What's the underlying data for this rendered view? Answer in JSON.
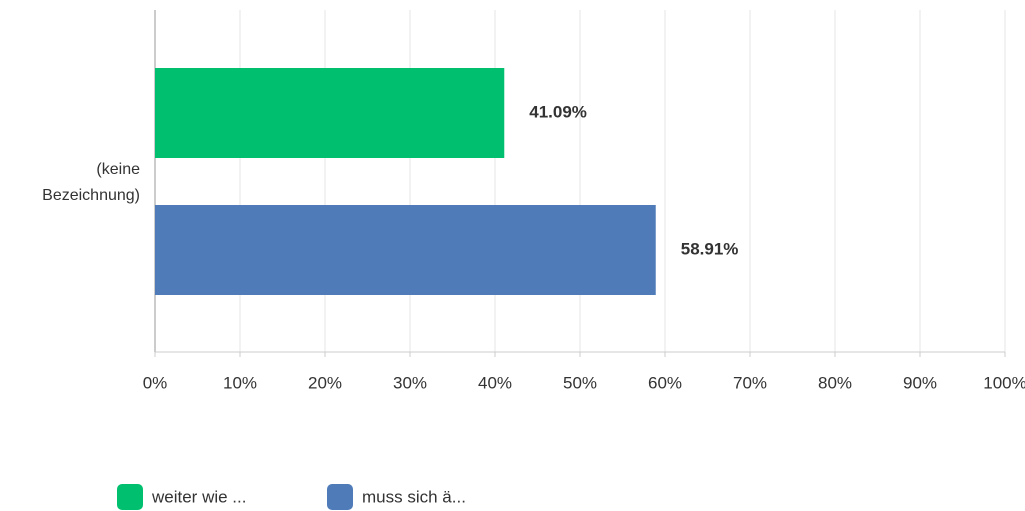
{
  "chart_data": {
    "type": "bar",
    "orientation": "horizontal",
    "categories": [
      "(keine Bezeichnung)"
    ],
    "series": [
      {
        "name": "weiter wie ...",
        "color": "#00bf6f",
        "values": [
          41.09
        ],
        "value_labels": [
          "41.09%"
        ]
      },
      {
        "name": "muss sich ä...",
        "color": "#4f7cb8",
        "values": [
          58.91
        ],
        "value_labels": [
          "58.91%"
        ]
      }
    ],
    "xlim": [
      0,
      100
    ],
    "xticks": [
      {
        "value": 0,
        "label": "0%"
      },
      {
        "value": 10,
        "label": "10%"
      },
      {
        "value": 20,
        "label": "20%"
      },
      {
        "value": 30,
        "label": "30%"
      },
      {
        "value": 40,
        "label": "40%"
      },
      {
        "value": 50,
        "label": "50%"
      },
      {
        "value": 60,
        "label": "60%"
      },
      {
        "value": 70,
        "label": "70%"
      },
      {
        "value": 80,
        "label": "80%"
      },
      {
        "value": 90,
        "label": "90%"
      },
      {
        "value": 100,
        "label": "100%"
      }
    ],
    "grid": true,
    "legend": "bottom"
  }
}
